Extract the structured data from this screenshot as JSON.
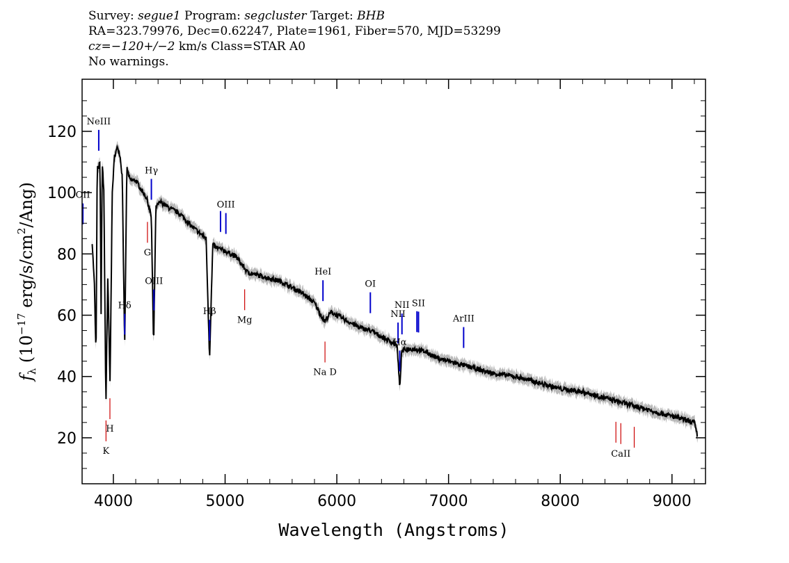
{
  "header": {
    "line1": {
      "survey_label": "Survey:",
      "survey": "segue1",
      "program_label": "Program:",
      "program": "segcluster",
      "target_label": "Target:",
      "target": "BHB"
    },
    "line2": "RA=323.79976, Dec=0.62247, Plate=1961, Fiber=570, MJD=53299",
    "line3": {
      "cz": "cz=−120+/−2",
      "rest": " km/s Class=STAR A0"
    },
    "line4": "No warnings."
  },
  "chart_data": {
    "type": "line",
    "xlabel": "Wavelength (Angstroms)",
    "ylabel": "f_λ (10^-17 erg/s/cm^2/Ang)",
    "xlim": [
      3720,
      9300
    ],
    "ylim": [
      5,
      137
    ],
    "xticks": [
      4000,
      5000,
      6000,
      7000,
      8000,
      9000
    ],
    "yticks": [
      20,
      40,
      60,
      80,
      100,
      120
    ],
    "grid": false,
    "colors": {
      "spectrum": "#000000",
      "error": "#b8b8b8",
      "emission": "#0000cc",
      "absorption": "#cc0000"
    },
    "series": [
      {
        "x": [
          3810,
          3830,
          3845,
          3855,
          3870,
          3880,
          3890,
          3900,
          3915,
          3933,
          3950,
          3970,
          3990,
          4010,
          4040,
          4060,
          4080,
          4101,
          4120,
          4150,
          4200,
          4250,
          4300,
          4320,
          4340,
          4360,
          4380,
          4420,
          4500,
          4600,
          4700,
          4800,
          4830,
          4861,
          4890,
          4920,
          5000,
          5100,
          5200,
          5300,
          5400,
          5500,
          5600,
          5700,
          5800,
          5890,
          5950,
          6000,
          6100,
          6200,
          6300,
          6400,
          6500,
          6540,
          6563,
          6580,
          6620,
          6700,
          6800,
          6900,
          7000,
          7200,
          7400,
          7600,
          7800,
          8000,
          8200,
          8400,
          8500,
          8600,
          8700,
          8800,
          8900,
          9000,
          9100,
          9200,
          9230
        ],
        "y": [
          84,
          70,
          46,
          108,
          108,
          111,
          60,
          110,
          100,
          30,
          72,
          38,
          100,
          112,
          115,
          112,
          105,
          48,
          108,
          104,
          104,
          101,
          98,
          95,
          92,
          49,
          95,
          97,
          95,
          93,
          89,
          86,
          85,
          46,
          83,
          82,
          81,
          79,
          74,
          73,
          72,
          71,
          69,
          67,
          64,
          58,
          61,
          60,
          58,
          56,
          55,
          53,
          51,
          50,
          36,
          48,
          49,
          49,
          48,
          46,
          45,
          43,
          41,
          40,
          38,
          36,
          35,
          33,
          32,
          31,
          30,
          29,
          28,
          27,
          26,
          25,
          20
        ]
      }
    ],
    "lines": [
      {
        "label": "OII",
        "x": 3727,
        "kind": "emission",
        "label_pos": "above"
      },
      {
        "label": "NeIII",
        "x": 3869,
        "kind": "emission",
        "label_pos": "above"
      },
      {
        "label": "Hδ",
        "x": 4101,
        "kind": "emission",
        "label_pos": "above"
      },
      {
        "label": "Hγ",
        "x": 4340,
        "kind": "emission",
        "label_pos": "above"
      },
      {
        "label": "OIII",
        "x": 4363,
        "kind": "emission",
        "label_pos": "above"
      },
      {
        "label": "Hβ",
        "x": 4861,
        "kind": "emission",
        "label_pos": "above"
      },
      {
        "label": "OIII",
        "x": 4959,
        "kind": "emission",
        "label_pos": "none"
      },
      {
        "label": "OIII",
        "x": 5007,
        "kind": "emission",
        "label_pos": "above"
      },
      {
        "label": "HeI",
        "x": 5876,
        "kind": "emission",
        "label_pos": "above"
      },
      {
        "label": "OI",
        "x": 6300,
        "kind": "emission",
        "label_pos": "above"
      },
      {
        "label": "NII",
        "x": 6548,
        "kind": "emission",
        "label_pos": "above"
      },
      {
        "label": "Hα",
        "x": 6563,
        "kind": "emission",
        "label_pos": "above"
      },
      {
        "label": "NII",
        "x": 6583,
        "kind": "emission",
        "label_pos": "above"
      },
      {
        "label": "SII",
        "x": 6717,
        "kind": "emission",
        "label_pos": "none"
      },
      {
        "label": "SII",
        "x": 6731,
        "kind": "emission",
        "label_pos": "above"
      },
      {
        "label": "ArIII",
        "x": 7135,
        "kind": "emission",
        "label_pos": "above"
      },
      {
        "label": "K",
        "x": 3934,
        "kind": "absorption",
        "label_pos": "below"
      },
      {
        "label": "H",
        "x": 3969,
        "kind": "absorption",
        "label_pos": "below"
      },
      {
        "label": "G",
        "x": 4305,
        "kind": "absorption",
        "label_pos": "below"
      },
      {
        "label": "Mg",
        "x": 5175,
        "kind": "absorption",
        "label_pos": "below"
      },
      {
        "label": "Na D",
        "x": 5894,
        "kind": "absorption",
        "label_pos": "below"
      },
      {
        "label": "CaII",
        "x": 8498,
        "kind": "absorption",
        "label_pos": "none"
      },
      {
        "label": "CaII",
        "x": 8542,
        "kind": "absorption",
        "label_pos": "below"
      },
      {
        "label": "CaII",
        "x": 8662,
        "kind": "absorption",
        "label_pos": "none"
      }
    ]
  }
}
